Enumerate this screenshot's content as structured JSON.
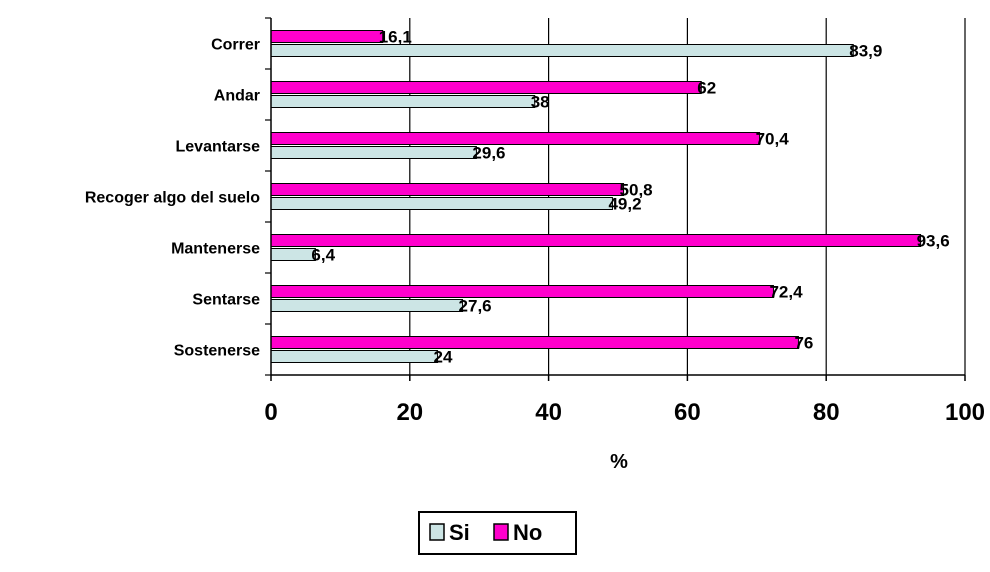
{
  "chart_data": {
    "type": "bar",
    "orientation": "horizontal",
    "categories": [
      "Correr",
      "Andar",
      "Levantarse",
      "Recoger algo del suelo",
      "Mantenerse",
      "Sentarse",
      "Sostenerse"
    ],
    "series": [
      {
        "name": "Si",
        "color": "#cce5e5",
        "values": [
          83.9,
          38,
          29.6,
          49.2,
          6.4,
          27.6,
          24
        ],
        "labels": [
          "83,9",
          "38",
          "29,6",
          "49,2",
          "6,4",
          "27,6",
          "24"
        ]
      },
      {
        "name": "No",
        "color": "#ff00cc",
        "values": [
          16.1,
          62,
          70.4,
          50.8,
          93.6,
          72.4,
          76
        ],
        "labels": [
          "16,1",
          "62",
          "70,4",
          "50,8",
          "93,6",
          "72,4",
          "76"
        ]
      }
    ],
    "xlabel": "%",
    "ylabel": "",
    "xlim": [
      0,
      100
    ],
    "xticks": [
      0,
      20,
      40,
      60,
      80,
      100
    ],
    "grid": "vertical",
    "legend": "bottom"
  }
}
